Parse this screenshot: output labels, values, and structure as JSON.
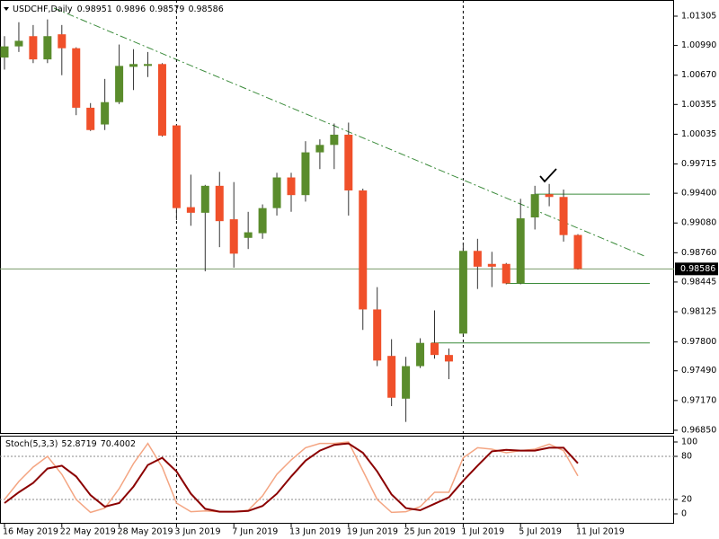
{
  "chart_data": [
    {
      "type": "candlestick",
      "title": "USDCHF,Daily",
      "categories": [
        "16 May 2019",
        null,
        null,
        null,
        "22 May 2019",
        null,
        null,
        null,
        "28 May 2019",
        null,
        null,
        null,
        "3 Jun 2019",
        null,
        null,
        null,
        "7 Jun 2019",
        null,
        null,
        null,
        "13 Jun 2019",
        null,
        null,
        null,
        "19 Jun 2019",
        null,
        null,
        null,
        "25 Jun 2019",
        null,
        null,
        null,
        "1 Jul 2019",
        null,
        null,
        null,
        "5 Jul 2019",
        null,
        null,
        null,
        "11 Jul 2019"
      ],
      "open": [
        1.0086,
        1.0098,
        1.0109,
        1.0084,
        1.0111,
        1.0096,
        1.0032,
        1.0014,
        1.0038,
        1.0076,
        1.0077,
        1.0079,
        1.0013,
        0.9925,
        0.9919,
        0.9948,
        0.9912,
        0.9892,
        0.9897,
        0.9924,
        0.9957,
        0.9938,
        0.9984,
        0.9992,
        1.0003,
        0.9943,
        0.9815,
        0.9765,
        0.9719,
        0.9754,
        0.9779,
        0.9766,
        0.9789,
        0.9878,
        0.9864,
        0.9864,
        0.9843,
        0.9914,
        0.9939,
        0.9936,
        0.98951
      ],
      "high": [
        1.0109,
        1.0124,
        1.0121,
        1.0127,
        1.0121,
        1.0097,
        1.0037,
        1.0063,
        1.01,
        1.0095,
        1.0092,
        1.008,
        1.0014,
        0.996,
        0.9949,
        0.9963,
        0.9952,
        0.992,
        0.9928,
        0.9962,
        0.9962,
        0.9996,
        0.9998,
        1.0015,
        1.0016,
        0.9945,
        0.9839,
        0.9783,
        0.9764,
        0.9784,
        0.9814,
        0.9773,
        0.9887,
        0.9891,
        0.9877,
        0.9865,
        0.9934,
        0.9948,
        0.995,
        0.9944,
        0.9896
      ],
      "low": [
        1.0073,
        1.0092,
        1.008,
        1.008,
        1.0067,
        1.0024,
        1.0007,
        1.0008,
        1.0036,
        1.0051,
        1.0065,
        1.0001,
        0.9911,
        0.9905,
        0.9856,
        0.9882,
        0.986,
        0.988,
        0.9891,
        0.9916,
        0.992,
        0.9931,
        0.9966,
        0.9966,
        0.9916,
        0.9793,
        0.9754,
        0.9711,
        0.9694,
        0.9752,
        0.9762,
        0.974,
        0.9788,
        0.9837,
        0.9839,
        0.9842,
        0.9842,
        0.9901,
        0.9926,
        0.9888,
        0.98579
      ],
      "close": [
        1.0098,
        1.0104,
        1.0084,
        1.0109,
        1.0096,
        1.0032,
        1.0008,
        1.0038,
        1.0077,
        1.0079,
        1.0079,
        1.0002,
        0.9924,
        0.9919,
        0.9948,
        0.991,
        0.9875,
        0.9898,
        0.9924,
        0.9957,
        0.9938,
        0.9984,
        0.9992,
        1.0003,
        0.9943,
        0.9815,
        0.976,
        0.972,
        0.9754,
        0.9779,
        0.9766,
        0.9759,
        0.9878,
        0.9861,
        0.9861,
        0.9843,
        0.9913,
        0.9939,
        0.9936,
        0.9895,
        0.98586
      ],
      "up_color": "#5a8c2c",
      "down_color": "#f0502a",
      "ylim": [
        0.96811,
        1.01479
      ],
      "yticks": [
        1.01305,
        {
          "value": 1.0099,
          "label": "1.00990"
        },
        {
          "value": 1.0067,
          "label": "1.00670"
        },
        1.00355,
        1.00035,
        0.99715,
        {
          "value": 0.994,
          "label": "0.99400"
        },
        {
          "value": 0.9908,
          "label": "0.99080"
        },
        {
          "value": 0.9876,
          "label": "0.98760"
        },
        0.98445,
        0.98125,
        {
          "value": 0.978,
          "label": "0.97800"
        },
        {
          "value": 0.9749,
          "label": "0.97490"
        },
        {
          "value": 0.9717,
          "label": "0.97170"
        },
        {
          "value": 0.9685,
          "label": "0.96850"
        }
      ],
      "hlines": [
        0.9939,
        0.9843,
        0.9779
      ]
    },
    {
      "type": "line",
      "title": "Stoch(5,3,3)",
      "series": [
        {
          "color": "#f4a582",
          "values": [
            20,
            45,
            65,
            80,
            55,
            20,
            2,
            8,
            35,
            70,
            98,
            65,
            15,
            3,
            4,
            3,
            3,
            5,
            25,
            55,
            75,
            92,
            98,
            98,
            100,
            60,
            20,
            2,
            3,
            10,
            30,
            30,
            78,
            92,
            90,
            85,
            88,
            90,
            97,
            88,
            52.8719
          ]
        },
        {
          "color": "#8b0000",
          "values": [
            15,
            30,
            43,
            63,
            67,
            52,
            26,
            10,
            15,
            38,
            68,
            78,
            59,
            28,
            7,
            3,
            3,
            4,
            11,
            28,
            52,
            74,
            88,
            96,
            98,
            85,
            59,
            27,
            8,
            5,
            14,
            23,
            46,
            67,
            87,
            89,
            88,
            88,
            92,
            92,
            70.4002
          ]
        }
      ],
      "ylim": [
        -13.75,
        108.75
      ],
      "yticks": [
        100,
        80,
        20,
        0
      ],
      "levels": [
        80,
        20
      ]
    }
  ]
}
